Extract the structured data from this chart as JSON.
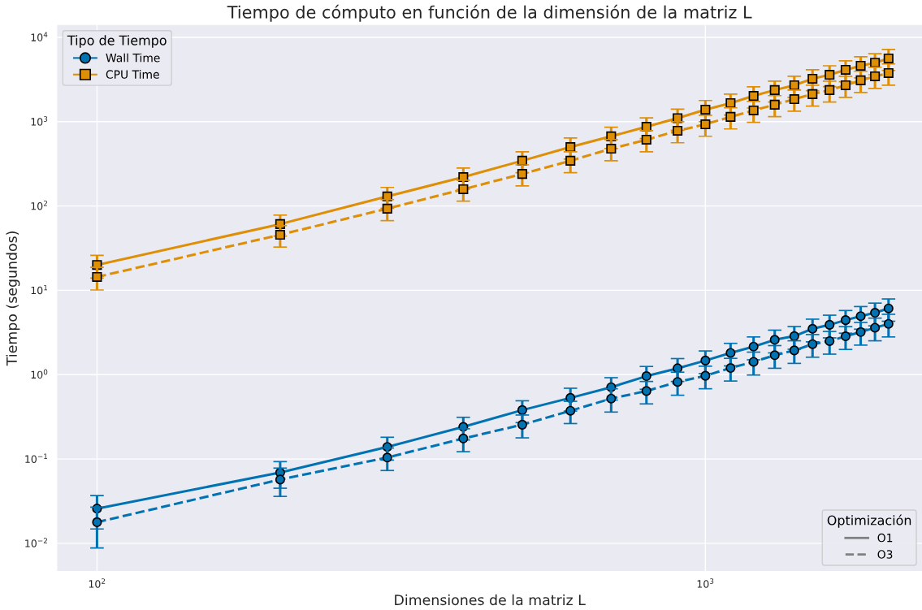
{
  "chart_data": {
    "type": "line",
    "title": "Tiempo de cómputo en función de la dimensión de la matriz L",
    "xlabel": "Dimensiones de la matriz L",
    "ylabel": "Tiempo (segundos)",
    "log": "xy",
    "grid": true,
    "legend": "top left",
    "legend_title": "Tipo de Tiempo",
    "annotations": [
      "Optimización",
      "O1",
      "O3"
    ],
    "x": [
      100,
      200,
      300,
      400,
      500,
      600,
      700,
      800,
      900,
      1000,
      1100,
      1200,
      1300,
      1400,
      1500,
      1600,
      1700,
      1800,
      1900,
      2000
    ],
    "xlim": [
      86,
      2270
    ],
    "xticks": [
      {
        "value": 100,
        "label": "10$^{2}$"
      },
      {
        "value": 1000,
        "label": "10$^{3}$"
      }
    ],
    "ylim": [
      0.0047,
      14000
    ],
    "yticks": [
      {
        "value": 0.01,
        "label": "10$^{−2}$"
      },
      {
        "value": 0.1,
        "label": "10$^{−1}$"
      },
      {
        "value": 1,
        "label": "10$^{0}$"
      },
      {
        "value": 10,
        "label": "10$^{1}$"
      },
      {
        "value": 100,
        "label": "10$^{2}$"
      },
      {
        "value": 1000,
        "label": "10$^{3}$"
      },
      {
        "value": 10000,
        "label": "10$^{4}$"
      }
    ],
    "series": [
      {
        "name": "Wall Time",
        "color": "#0173b2",
        "marker": "circle",
        "line_style": "solid",
        "values": [
          0.0258,
          0.069,
          0.139,
          0.24,
          0.38,
          0.53,
          0.71,
          0.96,
          1.19,
          1.47,
          1.81,
          2.15,
          2.59,
          2.86,
          3.5,
          3.9,
          4.43,
          4.94,
          5.42,
          6.1
        ],
        "errors": [
          0.011,
          0.024,
          0.042,
          0.072,
          0.11,
          0.16,
          0.21,
          0.29,
          0.36,
          0.44,
          0.54,
          0.65,
          0.78,
          0.86,
          1.05,
          1.17,
          1.33,
          1.48,
          1.63,
          1.8
        ]
      },
      {
        "color": "#0173b2",
        "marker": "circle",
        "line_style": "dashed",
        "values": [
          0.0178,
          0.057,
          0.104,
          0.175,
          0.255,
          0.373,
          0.52,
          0.64,
          0.82,
          0.97,
          1.2,
          1.42,
          1.7,
          1.94,
          2.3,
          2.5,
          2.85,
          3.2,
          3.6,
          4.0
        ],
        "errors": [
          0.009,
          0.021,
          0.031,
          0.053,
          0.077,
          0.11,
          0.16,
          0.19,
          0.25,
          0.29,
          0.36,
          0.43,
          0.51,
          0.58,
          0.69,
          0.75,
          0.86,
          0.96,
          1.08,
          1.2
        ]
      },
      {
        "name": "CPU Time",
        "color": "#de8f05",
        "marker": "square",
        "line_style": "solid",
        "values": [
          20,
          61,
          130,
          220,
          344,
          500,
          670,
          870,
          1100,
          1390,
          1660,
          2020,
          2370,
          2700,
          3230,
          3600,
          4120,
          4600,
          5000,
          5620
        ],
        "errors": [
          6,
          17,
          36,
          62,
          96,
          140,
          190,
          240,
          310,
          390,
          460,
          570,
          660,
          760,
          900,
          1000,
          1150,
          1290,
          1400,
          1570
        ]
      },
      {
        "color": "#de8f05",
        "marker": "square",
        "line_style": "dashed",
        "values": [
          14.4,
          45.6,
          93,
          158,
          240,
          344,
          478,
          611,
          780,
          931,
          1140,
          1360,
          1590,
          1850,
          2120,
          2370,
          2700,
          3090,
          3450,
          3770
        ],
        "errors": [
          4.3,
          13,
          26,
          44,
          67,
          96,
          134,
          171,
          218,
          260,
          320,
          380,
          445,
          520,
          590,
          660,
          760,
          870,
          970,
          1060
        ]
      }
    ]
  }
}
